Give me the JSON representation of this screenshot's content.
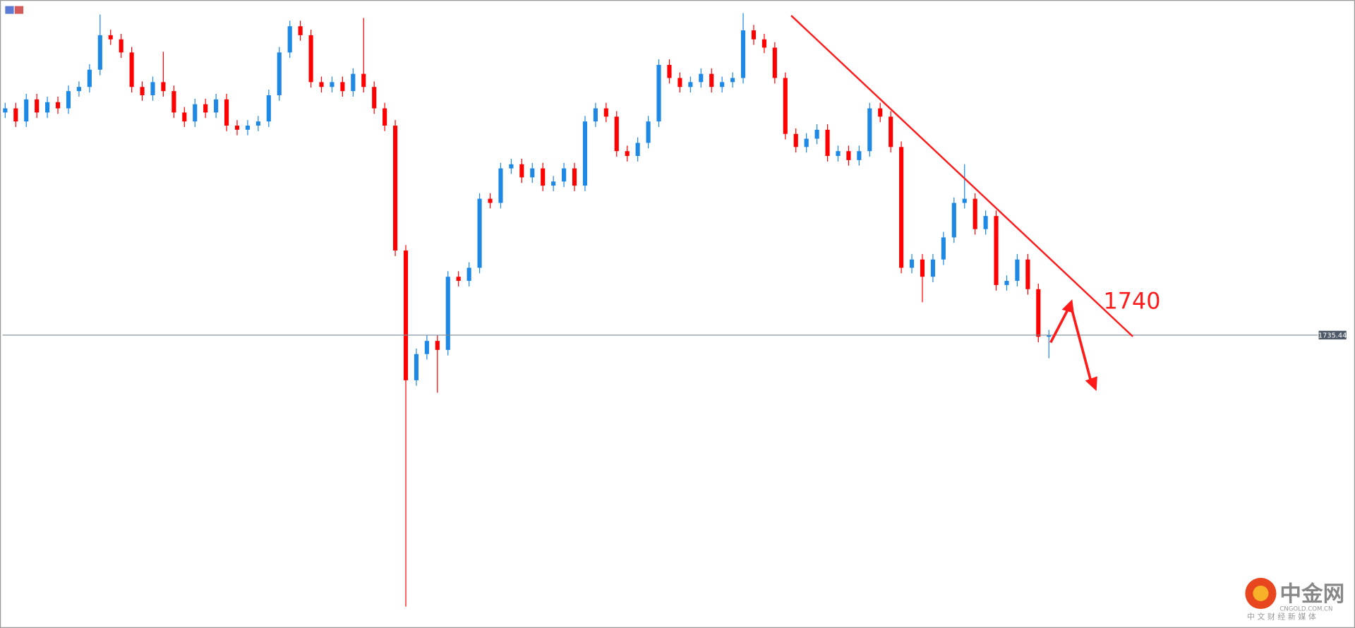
{
  "chart_data": {
    "type": "candlestick",
    "open": [
      1767.7,
      1768.3,
      1766.4,
      1769.6,
      1767.7,
      1769.2,
      1768.3,
      1770.8,
      1771.4,
      1773.9,
      1778.9,
      1778.3,
      1776.4,
      1771.4,
      1770.2,
      1772.1,
      1770.8,
      1767.7,
      1766.4,
      1768.9,
      1767.7,
      1769.6,
      1765.8,
      1765.2,
      1765.8,
      1766.4,
      1770.2,
      1776.4,
      1780.2,
      1778.9,
      1772.1,
      1771.4,
      1772.1,
      1770.8,
      1773.3,
      1771.4,
      1768.3,
      1765.8,
      1747.7,
      1728.9,
      1732.7,
      1734.6,
      1733.3,
      1743.9,
      1743.3,
      1745.2,
      1755.2,
      1754.6,
      1759.6,
      1760.2,
      1758.3,
      1759.6,
      1757.1,
      1757.7,
      1759.6,
      1757.1,
      1766.4,
      1768.3,
      1767.1,
      1762.1,
      1761.4,
      1763.3,
      1766.4,
      1774.6,
      1772.7,
      1771.4,
      1772.1,
      1773.3,
      1771.4,
      1772.1,
      1772.7,
      1779.6,
      1778.3,
      1777.1,
      1772.7,
      1764.6,
      1762.7,
      1763.9,
      1765.2,
      1761.4,
      1762.1,
      1760.8,
      1762.1,
      1768.3,
      1767.1,
      1762.7,
      1745.2,
      1746.4,
      1743.9,
      1746.4,
      1749.6,
      1754.6,
      1755.2,
      1750.8,
      1752.7,
      1742.7,
      1743.3,
      1746.4,
      1742.1,
      1735.2
    ],
    "high": [
      1769.1,
      1769.1,
      1770.4,
      1770.4,
      1770.0,
      1770.0,
      1771.6,
      1772.2,
      1774.7,
      1781.9,
      1779.7,
      1779.1,
      1777.2,
      1772.2,
      1772.9,
      1776.5,
      1771.6,
      1768.5,
      1769.7,
      1769.7,
      1770.4,
      1770.4,
      1766.6,
      1766.6,
      1767.2,
      1771.0,
      1777.2,
      1781.0,
      1781.0,
      1779.7,
      1772.9,
      1772.9,
      1772.9,
      1774.1,
      1781.4,
      1772.2,
      1769.1,
      1766.6,
      1748.5,
      1733.5,
      1735.4,
      1735.4,
      1744.7,
      1744.7,
      1746.0,
      1756.0,
      1756.0,
      1760.4,
      1761.0,
      1761.0,
      1760.4,
      1760.4,
      1758.5,
      1760.4,
      1760.4,
      1767.2,
      1769.1,
      1769.1,
      1767.9,
      1762.9,
      1764.1,
      1767.2,
      1775.4,
      1775.4,
      1773.5,
      1772.9,
      1774.1,
      1774.1,
      1772.9,
      1773.5,
      1782.1,
      1780.4,
      1779.1,
      1777.9,
      1773.5,
      1765.4,
      1764.7,
      1766.0,
      1766.0,
      1762.9,
      1762.9,
      1762.9,
      1769.1,
      1769.1,
      1767.9,
      1763.5,
      1747.2,
      1747.2,
      1747.2,
      1750.4,
      1755.4,
      1760.2,
      1756.0,
      1753.5,
      1753.5,
      1744.1,
      1747.2,
      1747.2,
      1742.9,
      1736.2
    ],
    "low": [
      1766.9,
      1765.6,
      1765.6,
      1766.9,
      1766.9,
      1767.5,
      1767.5,
      1770.0,
      1770.6,
      1773.1,
      1777.5,
      1775.6,
      1770.6,
      1769.4,
      1769.4,
      1770.0,
      1766.9,
      1765.6,
      1765.6,
      1766.9,
      1766.9,
      1765.0,
      1764.4,
      1764.4,
      1765.0,
      1765.6,
      1769.4,
      1775.6,
      1778.1,
      1771.3,
      1770.6,
      1770.6,
      1770.0,
      1770.0,
      1770.6,
      1767.5,
      1765.0,
      1746.9,
      1696.1,
      1728.1,
      1731.9,
      1727.1,
      1732.5,
      1742.5,
      1742.5,
      1744.4,
      1753.8,
      1753.8,
      1758.8,
      1757.5,
      1757.5,
      1756.3,
      1756.3,
      1756.9,
      1756.3,
      1756.3,
      1765.6,
      1766.3,
      1761.3,
      1760.6,
      1760.6,
      1762.5,
      1765.6,
      1771.9,
      1770.6,
      1770.6,
      1771.3,
      1770.6,
      1770.6,
      1771.3,
      1771.9,
      1777.5,
      1776.3,
      1771.9,
      1763.8,
      1761.9,
      1761.9,
      1763.1,
      1760.6,
      1760.6,
      1760.0,
      1760.0,
      1761.3,
      1766.3,
      1761.9,
      1744.4,
      1744.4,
      1740.2,
      1743.1,
      1745.6,
      1748.8,
      1753.8,
      1750.0,
      1750.0,
      1741.9,
      1741.9,
      1742.5,
      1741.3,
      1734.4,
      1732.1
    ],
    "close": [
      1768.3,
      1766.4,
      1769.6,
      1767.7,
      1769.2,
      1768.3,
      1770.8,
      1771.4,
      1773.9,
      1778.9,
      1778.3,
      1776.4,
      1771.4,
      1770.2,
      1772.1,
      1770.8,
      1767.7,
      1766.4,
      1768.9,
      1767.7,
      1769.6,
      1765.8,
      1765.2,
      1765.8,
      1766.4,
      1770.2,
      1776.4,
      1780.2,
      1778.9,
      1772.1,
      1771.4,
      1772.1,
      1770.8,
      1773.3,
      1771.4,
      1768.3,
      1765.8,
      1747.7,
      1728.9,
      1732.7,
      1734.6,
      1733.3,
      1743.9,
      1743.3,
      1745.2,
      1755.2,
      1754.6,
      1759.6,
      1760.2,
      1758.3,
      1759.6,
      1757.1,
      1757.7,
      1759.6,
      1757.1,
      1766.4,
      1768.3,
      1767.1,
      1762.1,
      1761.4,
      1763.3,
      1766.4,
      1774.6,
      1772.7,
      1771.4,
      1772.1,
      1773.3,
      1771.4,
      1772.1,
      1772.7,
      1779.6,
      1778.3,
      1777.1,
      1772.7,
      1764.6,
      1762.7,
      1763.9,
      1765.2,
      1761.4,
      1762.1,
      1760.8,
      1762.1,
      1768.3,
      1767.1,
      1762.7,
      1745.2,
      1746.4,
      1743.9,
      1746.4,
      1749.6,
      1754.6,
      1755.2,
      1750.8,
      1752.7,
      1742.7,
      1743.3,
      1746.4,
      1742.1,
      1735.2,
      1735.4
    ],
    "up_color": "#1e88e5",
    "down_color": "#ff0000",
    "ylim": [
      1693,
      1784
    ],
    "price_line": 1735.44,
    "annotation": "1740"
  },
  "watermark": {
    "name": "中金网",
    "domain": "CNGOLD.COM.CN",
    "tagline": "中 文 财 经 新 媒 体"
  }
}
